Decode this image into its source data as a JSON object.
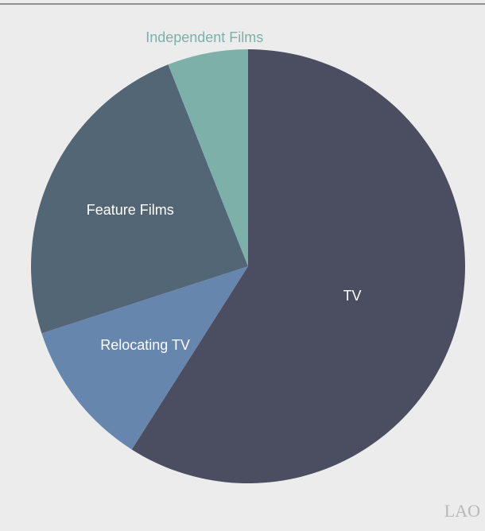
{
  "chart_data": {
    "type": "pie",
    "categories": [
      "TV",
      "Relocating TV",
      "Feature Films",
      "Independent Films"
    ],
    "values": [
      59,
      11,
      24,
      6
    ],
    "colors": [
      "#4b4d60",
      "#6786ae",
      "#536676",
      "#7db0a8"
    ],
    "logo": "LAO"
  }
}
